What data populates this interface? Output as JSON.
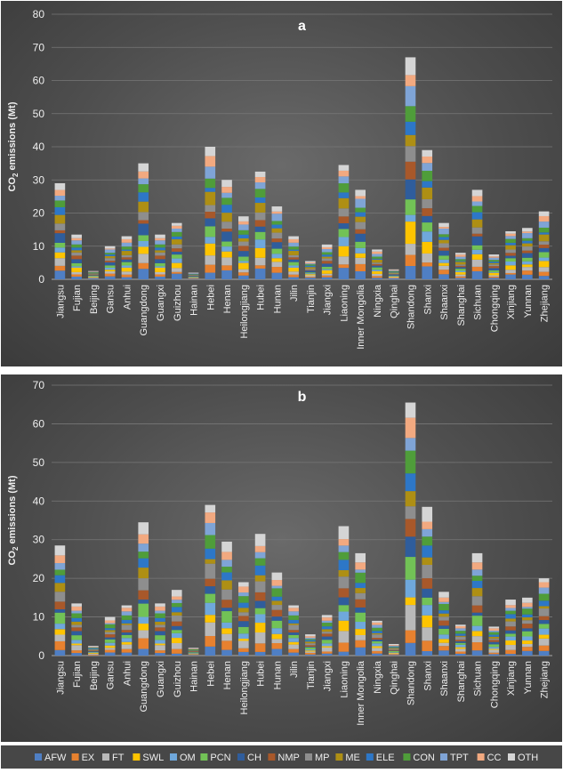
{
  "colors": {
    "AFW": "#4f7fc4",
    "EX": "#e7812f",
    "FT": "#b9b9b9",
    "SWL": "#fec400",
    "OM": "#6fa8dc",
    "PCN": "#72c256",
    "CH": "#2f5d9c",
    "NMP": "#a8582a",
    "MP": "#8e8e8e",
    "ME": "#ae8f14",
    "ELE": "#2d77c7",
    "CON": "#4f9d3a",
    "TPT": "#7fa4d6",
    "CC": "#f2a980",
    "OTH": "#d5d5d5"
  },
  "chart_data": [
    {
      "type": "bar",
      "stacked": true,
      "title": "a",
      "ylabel": "CO2 emissions (Mt)",
      "ylabel_sub": "2",
      "ylim": [
        0,
        80
      ],
      "yticks": [
        0,
        10,
        20,
        30,
        40,
        50,
        60,
        70,
        80
      ],
      "grid": true,
      "categories": [
        "Jiangsu",
        "Fujian",
        "Beijing",
        "Gansu",
        "Anhui",
        "Guangdong",
        "Guangxi",
        "Guizhou",
        "Hainan",
        "Hebei",
        "Henan",
        "Heilongjiang",
        "Hubei",
        "Hunan",
        "Jilin",
        "Tianjin",
        "Jiangxi",
        "Liaoning",
        "Inner Mongolia",
        "Ningxia",
        "Qinghai",
        "Shandong",
        "Shanxi",
        "Shaanxi",
        "Shanghai",
        "Sichuan",
        "Chongqing",
        "Xinjiang",
        "Yunnan",
        "Zhejiang"
      ],
      "totals": [
        29,
        13.5,
        2.5,
        10,
        13,
        35,
        13.5,
        17,
        2,
        40,
        30,
        19,
        32.5,
        22,
        13,
        5.5,
        10.5,
        34.5,
        27,
        9,
        3,
        67,
        39,
        17,
        8,
        27,
        7.5,
        14.5,
        15.5,
        20.5
      ]
    },
    {
      "type": "bar",
      "stacked": true,
      "title": "b",
      "ylabel": "CO2 emissions (Mt)",
      "ylabel_sub": "2",
      "ylim": [
        0,
        70
      ],
      "yticks": [
        0,
        10,
        20,
        30,
        40,
        50,
        60,
        70
      ],
      "grid": true,
      "categories": [
        "Jiangsu",
        "Fujian",
        "Beijing",
        "Gansu",
        "Anhui",
        "Guangdong",
        "Guangxi",
        "Guizhou",
        "Hainan",
        "Hebei",
        "Henan",
        "Heilongjiang",
        "Hubei",
        "Hunan",
        "Jilin",
        "Tianjin",
        "Jiangxi",
        "Liaoning",
        "Inner Mongolia",
        "Ningxia",
        "Qinghai",
        "Shandong",
        "Shanxi",
        "Shaanxi",
        "Shanghai",
        "Sichuan",
        "Chongqing",
        "Xinjiang",
        "Yunnan",
        "Zhejiang"
      ],
      "totals": [
        28.5,
        13.5,
        2.5,
        10,
        13,
        34.5,
        13.5,
        17,
        2,
        39,
        29.5,
        19,
        31.5,
        21.5,
        13,
        5.5,
        10.5,
        33.5,
        26.5,
        9,
        3,
        65.5,
        38.5,
        16.5,
        8,
        26.5,
        7.5,
        14.5,
        15,
        20
      ]
    }
  ],
  "legend": [
    "AFW",
    "EX",
    "FT",
    "SWL",
    "OM",
    "PCN",
    "CH",
    "NMP",
    "MP",
    "ME",
    "ELE",
    "CON",
    "TPT",
    "CC",
    "OTH"
  ]
}
